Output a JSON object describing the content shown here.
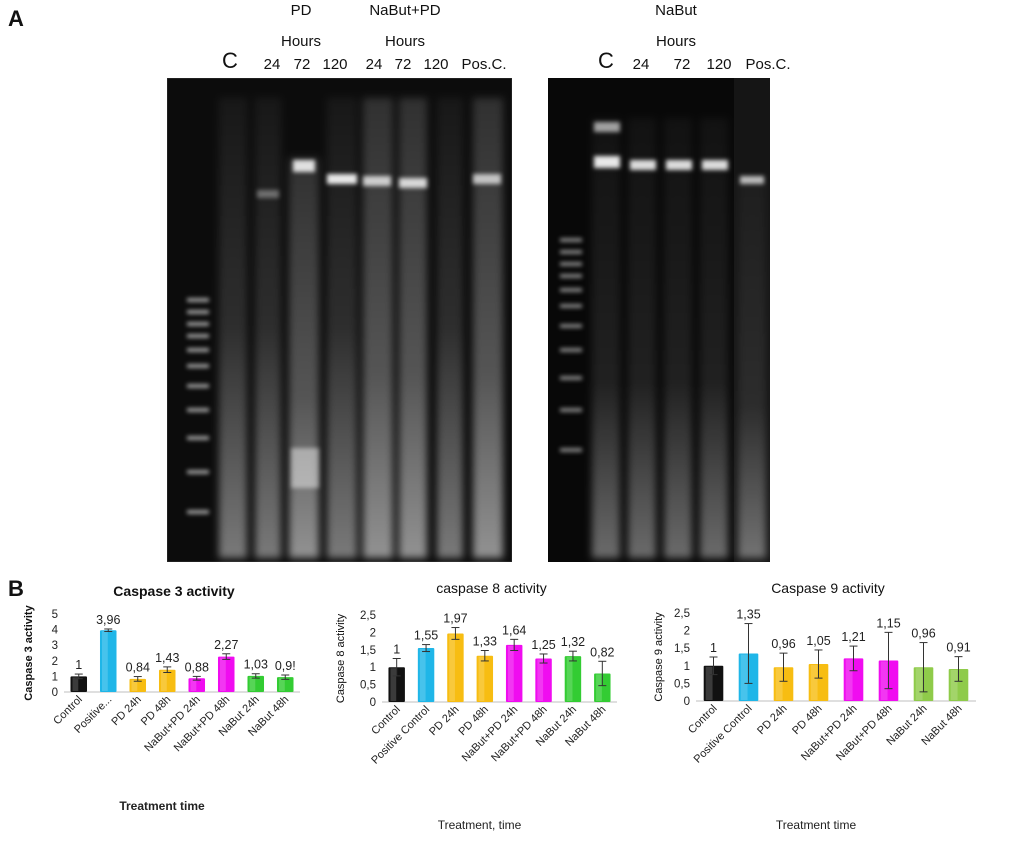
{
  "panel_a": {
    "letter": "A",
    "gel1": {
      "groups": [
        {
          "name": "PD",
          "sub": "Hours"
        },
        {
          "name": "NaBut+PD",
          "sub": "Hours"
        }
      ],
      "lanes": [
        "C",
        "24",
        "72",
        "120",
        "24",
        "72",
        "120",
        "Pos.C."
      ]
    },
    "gel2": {
      "groups": [
        {
          "name": "NaBut",
          "sub": "Hours"
        }
      ],
      "lanes": [
        "C",
        "24",
        "72",
        "120",
        "Pos.C."
      ]
    }
  },
  "panel_b": {
    "letter": "B"
  },
  "colors": {
    "control": "#111111",
    "positive": "#1fb6e8",
    "pd": "#f7bd12",
    "nabut_pd": "#f00cf0",
    "nabut": "#33cc33"
  },
  "chart_data": [
    {
      "type": "bar",
      "title": "Caspase 3 activity",
      "xlabel": "Treatment time",
      "ylabel": "Caspase  3 activity",
      "categories": [
        "Control",
        "Positive...",
        "PD 24h",
        "PD 48h",
        "NaBut+PD 24h",
        "NaBut+PD 48h",
        "NaBut 24h",
        "NaBut 48h"
      ],
      "values": [
        1,
        3.96,
        0.84,
        1.43,
        0.88,
        2.27,
        1.03,
        0.95
      ],
      "value_labels": [
        "1",
        "3,96",
        "0,84",
        "1,43",
        "0,88",
        "2,27",
        "1,03",
        "0,9!"
      ],
      "errors": [
        0.15,
        0.08,
        0.15,
        0.18,
        0.12,
        0.18,
        0.14,
        0.14
      ],
      "ylim": [
        0,
        5
      ],
      "yticks": [
        "0",
        "1",
        "2",
        "3",
        "4",
        "5"
      ],
      "bar_colors": [
        "#111111",
        "#1fb6e8",
        "#f7bd12",
        "#f7bd12",
        "#f00cf0",
        "#f00cf0",
        "#33cc33",
        "#33cc33"
      ]
    },
    {
      "type": "bar",
      "title": "caspase 8 activity",
      "xlabel": "Treatment,  time",
      "ylabel": "Caspase 8 activity",
      "categories": [
        "Control",
        "Positive Control",
        "PD 24h",
        "PD 48h",
        "NaBut+PD 24h",
        "NaBut+PD 48h",
        "NaBut 24h",
        "NaBut 48h"
      ],
      "values": [
        1,
        1.55,
        1.97,
        1.33,
        1.64,
        1.25,
        1.32,
        0.82
      ],
      "value_labels": [
        "1",
        "1,55",
        "1,97",
        "1,33",
        "1,64",
        "1,25",
        "1,32",
        "0,82"
      ],
      "errors": [
        0.25,
        0.1,
        0.17,
        0.15,
        0.16,
        0.13,
        0.14,
        0.35
      ],
      "ylim": [
        0,
        2.5
      ],
      "yticks": [
        "0",
        "0,5",
        "1",
        "1,5",
        "2",
        "2,5"
      ],
      "bar_colors": [
        "#111111",
        "#1fb6e8",
        "#f7bd12",
        "#f7bd12",
        "#f00cf0",
        "#f00cf0",
        "#33cc33",
        "#33cc33"
      ]
    },
    {
      "type": "bar",
      "title": "Caspase 9 activity",
      "xlabel": "Treatment time",
      "ylabel": "Caspase 9 activity",
      "categories": [
        "Control",
        "Positive Control",
        "PD 24h",
        "PD 48h",
        "NaBut+PD 24h",
        "NaBut+PD 48h",
        "NaBut 24h",
        "NaBut 48h"
      ],
      "values": [
        1,
        1.35,
        0.96,
        1.05,
        1.21,
        1.15,
        0.96,
        0.91
      ],
      "value_labels": [
        "1",
        "1,35",
        "0,96",
        "1,05",
        "1,21",
        "1,15",
        "0,96",
        "0,91"
      ],
      "errors": [
        0.25,
        0.85,
        0.4,
        0.4,
        0.35,
        0.8,
        0.7,
        0.35
      ],
      "ylim": [
        0,
        2.5
      ],
      "yticks": [
        "0",
        "0,5",
        "1",
        "1,5",
        "2",
        "2,5"
      ],
      "bar_colors": [
        "#111111",
        "#1fb6e8",
        "#f7bd12",
        "#f7bd12",
        "#f00cf0",
        "#f00cf0",
        "#8fcb4a",
        "#8fcb4a"
      ]
    }
  ]
}
